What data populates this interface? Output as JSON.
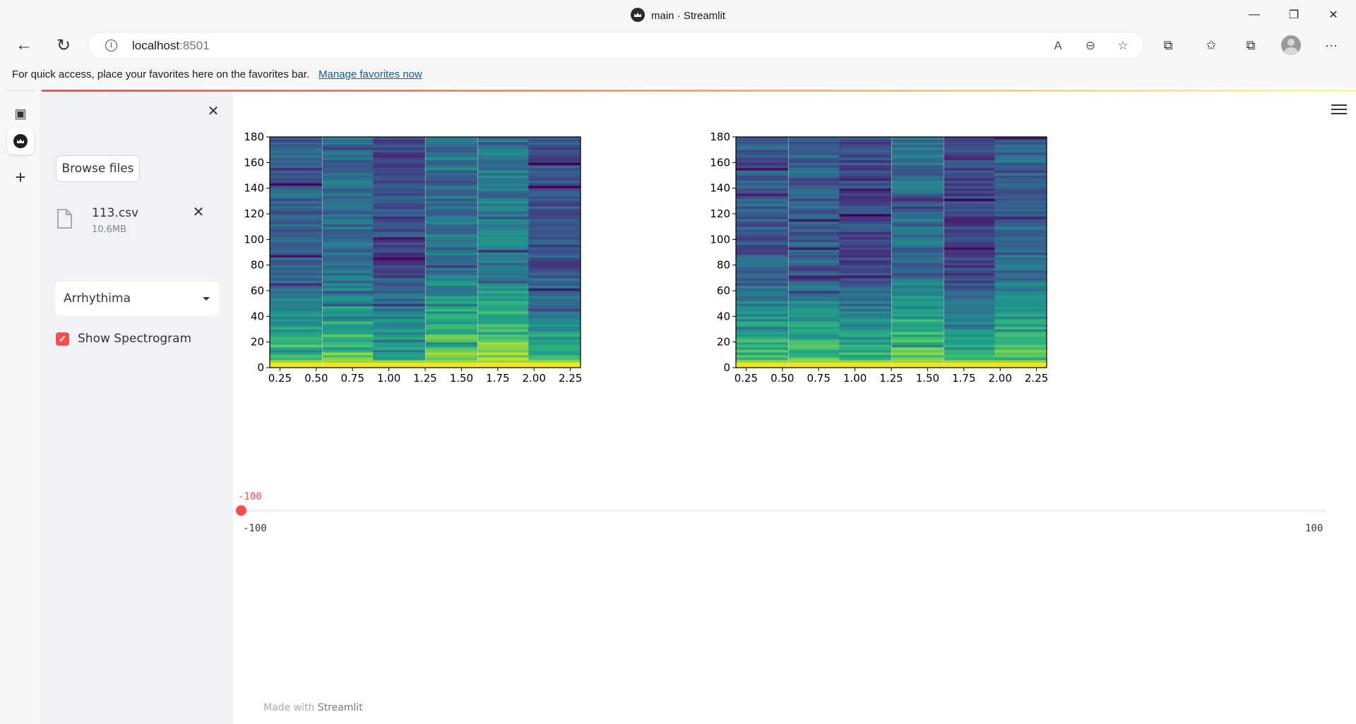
{
  "window": {
    "title": "main · Streamlit",
    "minimize": "—",
    "restore": "❐",
    "close": "✕"
  },
  "toolbar": {
    "host": "localhost",
    "port": ":8501",
    "back_icon": "←",
    "refresh_icon": "↻",
    "info_icon": "i",
    "read_aloud_icon": "A",
    "zoom_icon": "⊖",
    "favorite_add_icon": "☆",
    "extensions_icon": "⧉",
    "favorites_icon": "✩",
    "collections_icon": "⧉",
    "more_icon": "···"
  },
  "favorites_bar": {
    "message": "For quick access, place your favorites here on the favorites bar.",
    "link": "Manage favorites now"
  },
  "edge_sidebar": {
    "tabs_icon": "▣",
    "add_icon": "+"
  },
  "sidebar": {
    "close_icon": "✕",
    "browse_label": "Browse files",
    "file_name": "113.csv",
    "file_size": "10.6MB",
    "file_remove_icon": "✕",
    "select_value": "Arrhythima",
    "checkbox_checked": true,
    "checkbox_mark": "✓",
    "checkbox_label": "Show Spectrogram"
  },
  "slider": {
    "value": "-100",
    "min": "-100",
    "max": "100",
    "current": -100,
    "accent": "#ff4b4b"
  },
  "footer": {
    "prefix": "Made with",
    "brand": "Streamlit"
  },
  "chart_data": [
    {
      "type": "heatmap",
      "colormap": "viridis",
      "x_ticks": [
        "0.25",
        "0.50",
        "0.75",
        "1.00",
        "1.25",
        "1.50",
        "1.75",
        "2.00",
        "2.25"
      ],
      "y_ticks": [
        "0",
        "20",
        "40",
        "60",
        "80",
        "100",
        "120",
        "140",
        "160",
        "180"
      ],
      "xlim": [
        0.18,
        2.32
      ],
      "ylim": [
        0,
        180
      ],
      "time_bins": [
        0.36,
        0.72,
        1.07,
        1.43,
        1.79,
        2.14
      ],
      "column_levels": [
        0.3,
        0.35,
        0.22,
        0.38,
        0.42,
        0.25
      ],
      "seed": 7
    },
    {
      "type": "heatmap",
      "colormap": "viridis",
      "x_ticks": [
        "0.25",
        "0.50",
        "0.75",
        "1.00",
        "1.25",
        "1.50",
        "1.75",
        "2.00",
        "2.25"
      ],
      "y_ticks": [
        "0",
        "20",
        "40",
        "60",
        "80",
        "100",
        "120",
        "140",
        "160",
        "180"
      ],
      "xlim": [
        0.18,
        2.32
      ],
      "ylim": [
        0,
        180
      ],
      "time_bins": [
        0.36,
        0.72,
        1.07,
        1.43,
        1.79,
        2.14
      ],
      "column_levels": [
        0.28,
        0.3,
        0.22,
        0.36,
        0.2,
        0.33
      ],
      "seed": 13
    }
  ]
}
